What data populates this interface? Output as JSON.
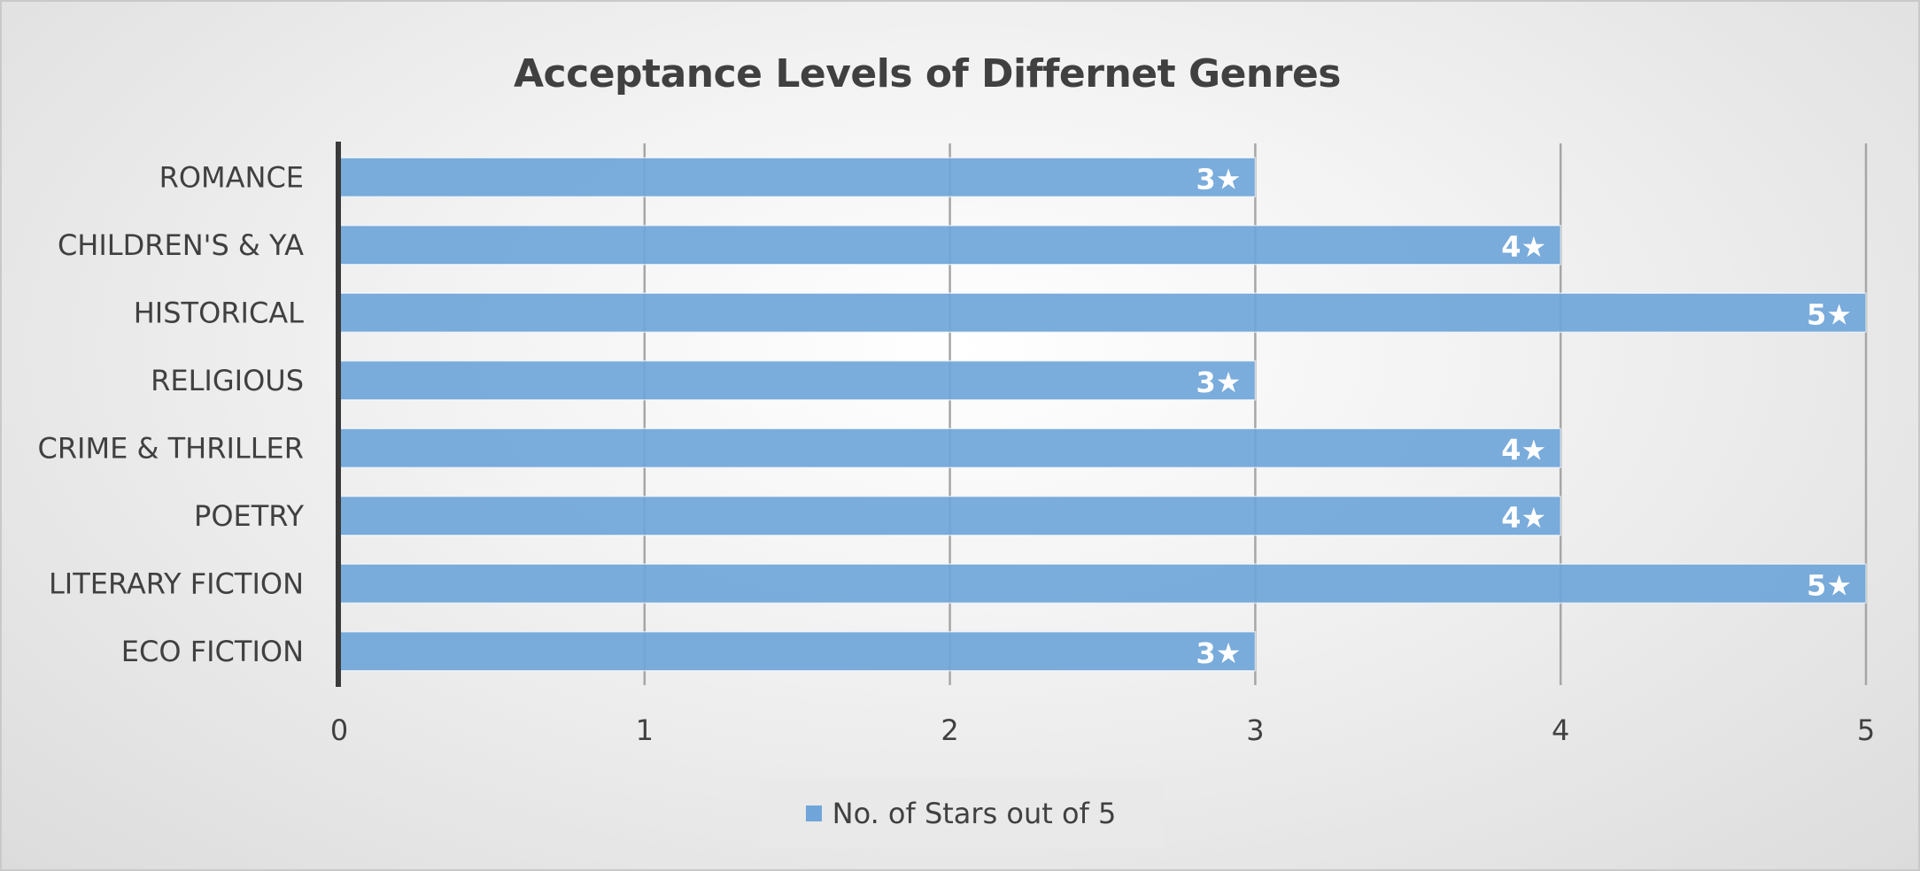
{
  "chart_data": {
    "type": "bar",
    "orientation": "horizontal",
    "title": "Acceptance Levels of Differnet Genres",
    "categories": [
      "ROMANCE",
      "CHILDREN'S & YA",
      "HISTORICAL",
      "RELIGIOUS",
      "CRIME & THRILLER",
      "POETRY",
      "LITERARY FICTION",
      "ECO FICTION"
    ],
    "series": [
      {
        "name": "No. of Stars out of 5",
        "values": [
          3,
          4,
          5,
          3,
          4,
          4,
          5,
          3
        ],
        "data_labels": [
          "3★",
          "4★",
          "5★",
          "3★",
          "4★",
          "4★",
          "5★",
          "3★"
        ],
        "color": "#6fa5d9"
      }
    ],
    "xlim": [
      0,
      5
    ],
    "x_ticks": [
      "0",
      "1",
      "2",
      "3",
      "4",
      "5"
    ],
    "xlabel": "",
    "ylabel": "",
    "grid": true,
    "legend_position": "bottom"
  }
}
